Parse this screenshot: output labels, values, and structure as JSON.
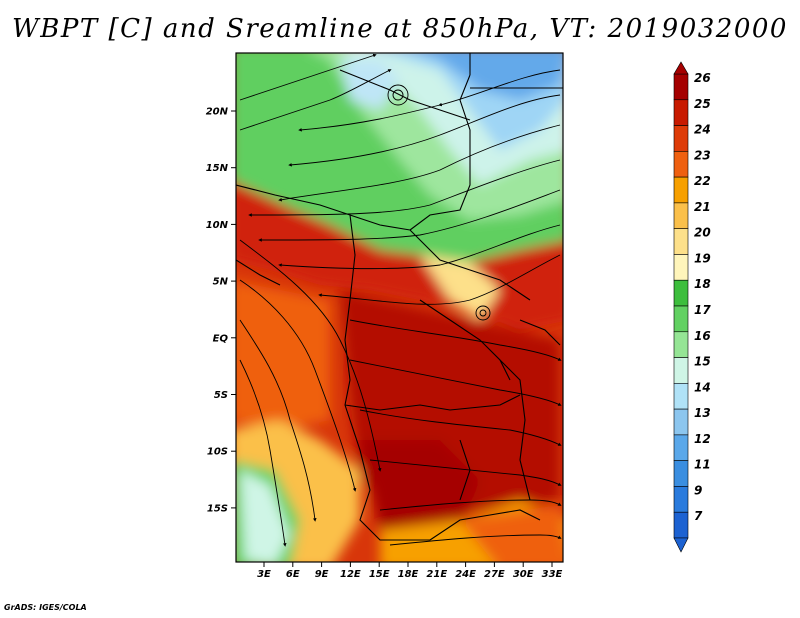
{
  "title": "WBPT [C] and Sreamline at 850hPa, VT: 2019032000",
  "credit": "GrADS: IGES/COLA",
  "lat_ticks": [
    "20N",
    "15N",
    "10N",
    "5N",
    "EQ",
    "5S",
    "10S",
    "15S"
  ],
  "lon_ticks": [
    "3E",
    "6E",
    "9E",
    "12E",
    "15E",
    "18E",
    "21E",
    "24E",
    "27E",
    "30E",
    "33E"
  ],
  "colorbar": {
    "labels": [
      "26",
      "25",
      "24",
      "23",
      "22",
      "21",
      "20",
      "19",
      "18",
      "17",
      "16",
      "15",
      "14",
      "13",
      "12",
      "11",
      "9",
      "7"
    ],
    "colors": [
      "#a50000",
      "#c81a00",
      "#de3b08",
      "#ef6010",
      "#f7a000",
      "#fbc04a",
      "#fde08a",
      "#fff5bb",
      "#3dbe3d",
      "#62d162",
      "#95e595",
      "#cff5e6",
      "#b0e2f7",
      "#8cc6ef",
      "#5aa8ea",
      "#3a8ee0",
      "#2a7bdd",
      "#1c62d2"
    ]
  },
  "map_layers": [
    "wet-bulb-potential-temperature",
    "streamlines",
    "country-borders",
    "coastlines"
  ]
}
